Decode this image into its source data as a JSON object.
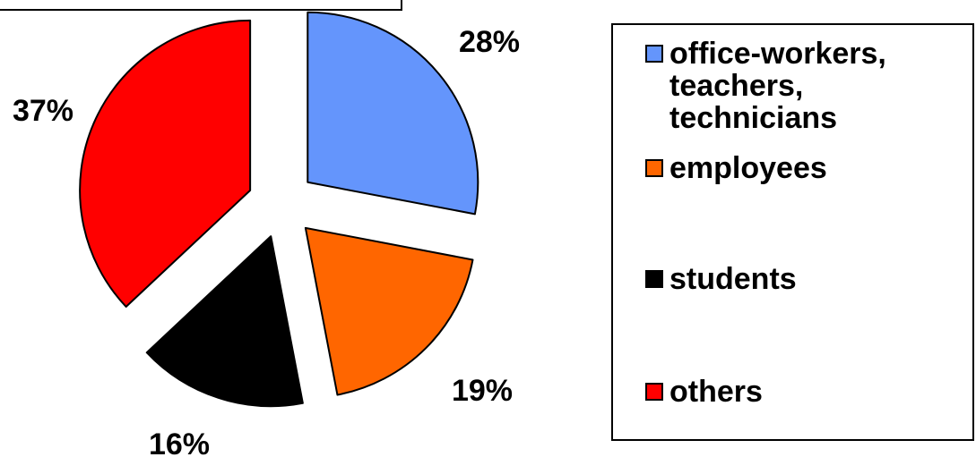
{
  "chart_data": {
    "type": "pie",
    "exploded": true,
    "slices": [
      {
        "label": "office-workers,\nteachers,\ntechnicians",
        "value": 28,
        "display": "28%",
        "color": "#6495fc"
      },
      {
        "label": "employees",
        "value": 19,
        "display": "19%",
        "color": "#ff6600"
      },
      {
        "label": "students",
        "value": 16,
        "display": "16%",
        "color": "#000000"
      },
      {
        "label": "others",
        "value": 37,
        "display": "37%",
        "color": "#ff0000"
      }
    ],
    "legend_placement": "right"
  }
}
